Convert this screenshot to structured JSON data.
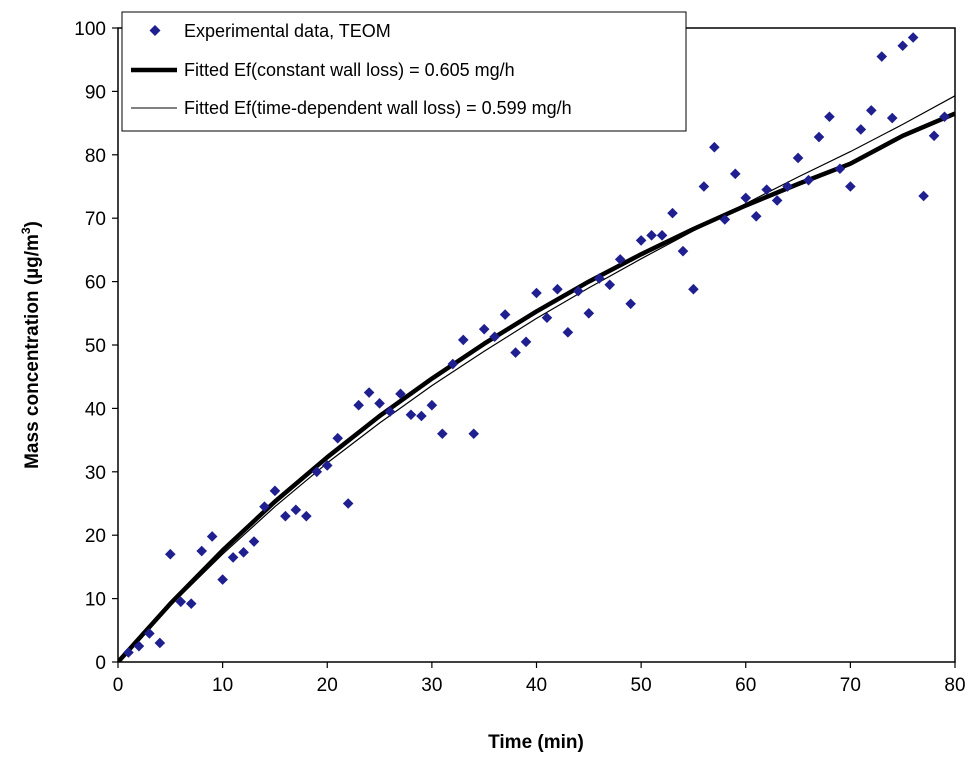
{
  "chart_data": {
    "type": "scatter",
    "xlabel": "Time (min)",
    "ylabel_main": "Mass concentration (µg/m",
    "ylabel_sup": "3",
    "ylabel_end": ")",
    "xlim": [
      0,
      80
    ],
    "ylim": [
      0,
      100
    ],
    "xticks": [
      0,
      10,
      20,
      30,
      40,
      50,
      60,
      70,
      80
    ],
    "yticks": [
      0,
      10,
      20,
      30,
      40,
      50,
      60,
      70,
      80,
      90,
      100
    ],
    "grid": false,
    "legend_position": "top-left",
    "colors": {
      "marker": "#1f1f8f",
      "fit_line": "#000000"
    },
    "series": [
      {
        "name": "Experimental data, TEOM",
        "kind": "scatter",
        "marker": "diamond",
        "points": [
          [
            1,
            1.5
          ],
          [
            2,
            2.5
          ],
          [
            3,
            4.5
          ],
          [
            4,
            3.0
          ],
          [
            5,
            17
          ],
          [
            6,
            9.5
          ],
          [
            7,
            9.2
          ],
          [
            8,
            17.5
          ],
          [
            9,
            19.8
          ],
          [
            10,
            13
          ],
          [
            11,
            16.5
          ],
          [
            12,
            17.3
          ],
          [
            13,
            19
          ],
          [
            14,
            24.5
          ],
          [
            15,
            27
          ],
          [
            16,
            23
          ],
          [
            17,
            24
          ],
          [
            18,
            23
          ],
          [
            19,
            30
          ],
          [
            20,
            31
          ],
          [
            21,
            35.3
          ],
          [
            22,
            25
          ],
          [
            23,
            40.5
          ],
          [
            24,
            42.5
          ],
          [
            25,
            40.8
          ],
          [
            26,
            39.5
          ],
          [
            27,
            42.3
          ],
          [
            28,
            39
          ],
          [
            29,
            38.8
          ],
          [
            30,
            40.5
          ],
          [
            31,
            36
          ],
          [
            32,
            47
          ],
          [
            33,
            50.8
          ],
          [
            34,
            36
          ],
          [
            35,
            52.5
          ],
          [
            36,
            51.3
          ],
          [
            37,
            54.8
          ],
          [
            38,
            48.8
          ],
          [
            39,
            50.5
          ],
          [
            40,
            58.2
          ],
          [
            41,
            54.3
          ],
          [
            42,
            58.8
          ],
          [
            43,
            52
          ],
          [
            44,
            58.5
          ],
          [
            45,
            55
          ],
          [
            46,
            60.5
          ],
          [
            47,
            59.5
          ],
          [
            48,
            63.5
          ],
          [
            49,
            56.5
          ],
          [
            50,
            66.5
          ],
          [
            51,
            67.3
          ],
          [
            52,
            67.3
          ],
          [
            53,
            70.8
          ],
          [
            54,
            64.8
          ],
          [
            55,
            58.8
          ],
          [
            56,
            75
          ],
          [
            57,
            81.2
          ],
          [
            58,
            69.8
          ],
          [
            59,
            77
          ],
          [
            60,
            73.2
          ],
          [
            61,
            70.3
          ],
          [
            62,
            74.5
          ],
          [
            63,
            72.8
          ],
          [
            64,
            75
          ],
          [
            65,
            79.5
          ],
          [
            66,
            76
          ],
          [
            67,
            82.8
          ],
          [
            68,
            86
          ],
          [
            69,
            77.8
          ],
          [
            70,
            75
          ],
          [
            71,
            84
          ],
          [
            72,
            87
          ],
          [
            73,
            95.5
          ],
          [
            74,
            85.8
          ],
          [
            75,
            97.2
          ],
          [
            76,
            98.5
          ],
          [
            77,
            73.5
          ],
          [
            78,
            83
          ],
          [
            79,
            86
          ]
        ]
      },
      {
        "name": "Fitted Ef(constant wall loss) = 0.605 mg/h",
        "kind": "line",
        "width": "thick",
        "points": [
          [
            0,
            0
          ],
          [
            5,
            9.2
          ],
          [
            10,
            17.6
          ],
          [
            15,
            25.3
          ],
          [
            20,
            32.3
          ],
          [
            25,
            38.8
          ],
          [
            30,
            44.7
          ],
          [
            35,
            50.2
          ],
          [
            40,
            55.3
          ],
          [
            45,
            60.0
          ],
          [
            50,
            64.3
          ],
          [
            55,
            68.3
          ],
          [
            60,
            72.0
          ],
          [
            65,
            75.4
          ],
          [
            70,
            78.6
          ],
          [
            75,
            83.0
          ],
          [
            80,
            86.5
          ]
        ]
      },
      {
        "name": "Fitted Ef(time-dependent wall loss) = 0.599 mg/h",
        "kind": "line",
        "width": "thin",
        "points": [
          [
            0,
            0
          ],
          [
            5,
            8.9
          ],
          [
            10,
            17.0
          ],
          [
            15,
            24.5
          ],
          [
            20,
            31.4
          ],
          [
            25,
            37.7
          ],
          [
            30,
            43.6
          ],
          [
            35,
            49.0
          ],
          [
            40,
            54.2
          ],
          [
            45,
            59.0
          ],
          [
            50,
            63.6
          ],
          [
            55,
            68.0
          ],
          [
            60,
            72.3
          ],
          [
            65,
            76.5
          ],
          [
            70,
            80.5
          ],
          [
            75,
            84.8
          ],
          [
            80,
            89.3
          ]
        ]
      }
    ]
  }
}
